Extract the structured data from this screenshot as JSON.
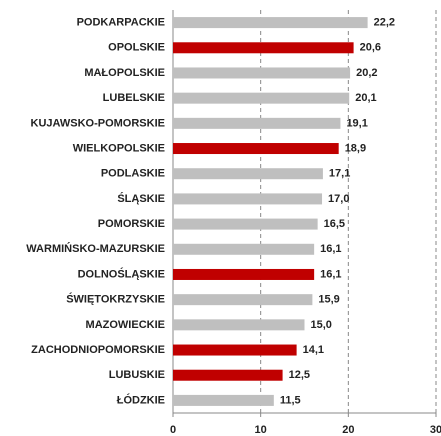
{
  "chart_data": {
    "type": "barh",
    "categories": [
      "PODKARPACKIE",
      "OPOLSKIE",
      "MAŁOPOLSKIE",
      "LUBELSKIE",
      "KUJAWSKO-POMORSKIE",
      "WIELKOPOLSKIE",
      "PODLASKIE",
      "ŚLĄSKIE",
      "POMORSKIE",
      "WARMIŃSKO-MAZURSKIE",
      "DOLNOŚLĄSKIE",
      "ŚWIĘTOKRZYSKIE",
      "MAZOWIECKIE",
      "ZACHODNIOPOMORSKIE",
      "LUBUSKIE",
      "ŁÓDZKIE"
    ],
    "values": [
      22.2,
      20.6,
      20.2,
      20.1,
      19.1,
      18.9,
      17.1,
      17.0,
      16.5,
      16.1,
      16.1,
      15.9,
      15.0,
      14.1,
      12.5,
      11.5
    ],
    "value_labels": [
      "22,2",
      "20,6",
      "20,2",
      "20,1",
      "19,1",
      "18,9",
      "17,1",
      "17,0",
      "16,5",
      "16,1",
      "16,1",
      "15,9",
      "15,0",
      "14,1",
      "12,5",
      "11,5"
    ],
    "colors": [
      "#bfbfbf",
      "#c00000",
      "#bfbfbf",
      "#bfbfbf",
      "#bfbfbf",
      "#c00000",
      "#bfbfbf",
      "#bfbfbf",
      "#bfbfbf",
      "#bfbfbf",
      "#c00000",
      "#bfbfbf",
      "#bfbfbf",
      "#c00000",
      "#c00000",
      "#bfbfbf"
    ],
    "xlim": [
      0,
      30
    ],
    "xticks": [
      0,
      10,
      20,
      30
    ],
    "grid": true
  }
}
